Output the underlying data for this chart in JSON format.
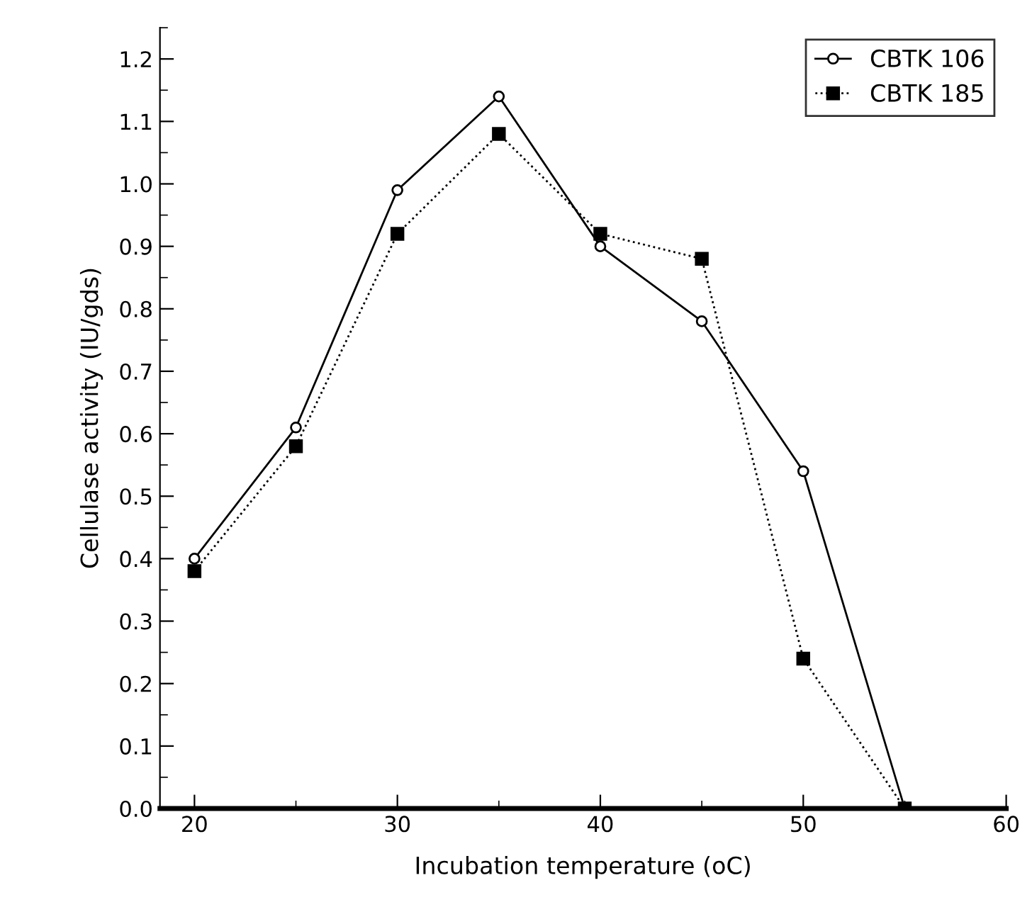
{
  "chart_data": {
    "type": "line",
    "xlabel": "Incubation temperature (oC)",
    "ylabel": "Cellulase activity (IU/gds)",
    "x": [
      20,
      25,
      30,
      35,
      40,
      45,
      50,
      55
    ],
    "series": [
      {
        "name": "CBTK 106",
        "color": "#000000",
        "marker": "circle",
        "line_style": "solid",
        "values": [
          0.4,
          0.61,
          0.99,
          1.14,
          0.9,
          0.78,
          0.54,
          0.0
        ]
      },
      {
        "name": "CBTK 185",
        "color": "#000000",
        "marker": "square",
        "line_style": "dotted",
        "values": [
          0.38,
          0.58,
          0.92,
          1.08,
          0.92,
          0.88,
          0.24,
          0.0
        ]
      }
    ],
    "xlim": [
      18.3,
      60
    ],
    "xticks": [
      20,
      30,
      40,
      50,
      60
    ],
    "ylim": [
      0,
      1.25
    ],
    "yticks": [
      {
        "value": 0,
        "label": "0.0"
      },
      0.1,
      0.2,
      0.3,
      0.4,
      0.5,
      0.6,
      0.7,
      0.8,
      0.9,
      {
        "value": 1,
        "label": "1.0"
      },
      1.1,
      1.2
    ],
    "grid": false,
    "legend": "top right"
  }
}
